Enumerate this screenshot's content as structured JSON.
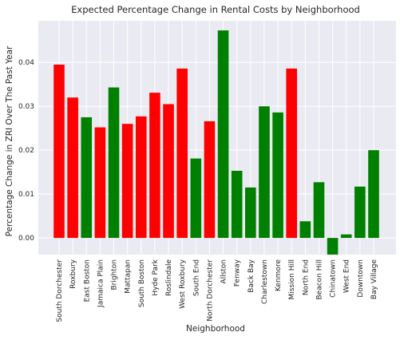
{
  "chart_data": {
    "type": "bar",
    "title": "Expected Percentage Change in Rental Costs by Neighborhood",
    "xlabel": "Neighborhood",
    "ylabel": "Percentage Change in ZRI Over The Past Year",
    "ylim": [
      -0.0038,
      0.0495
    ],
    "yticks": [
      0.0,
      0.01,
      0.02,
      0.03,
      0.04
    ],
    "ytick_labels": [
      "0.00",
      "0.01",
      "0.02",
      "0.03",
      "0.04"
    ],
    "grid": true,
    "categories": [
      "South Dorchester",
      "Roxbury",
      "East Boston",
      "Jamaica Plain",
      "Brighton",
      "Mattapan",
      "South Boston",
      "Hyde Park",
      "Roslindale",
      "West Roxbury",
      "South End",
      "North Dorchester",
      "Allston",
      "Fenway",
      "Back Bay",
      "Charlestown",
      "Kenmore",
      "Mission Hill",
      "North End",
      "Beacon Hill",
      "Chinatown",
      "West End",
      "Downtown",
      "Bay Village"
    ],
    "values": [
      0.0395,
      0.032,
      0.0275,
      0.0252,
      0.0343,
      0.026,
      0.0277,
      0.0331,
      0.0305,
      0.0386,
      0.0181,
      0.0266,
      0.0473,
      0.0153,
      0.0115,
      0.03,
      0.0286,
      0.0386,
      0.0038,
      0.0127,
      -0.0038,
      0.0008,
      0.0117,
      0.02
    ],
    "bar_colors": [
      "#ff0000",
      "#ff0000",
      "#008000",
      "#ff0000",
      "#008000",
      "#ff0000",
      "#ff0000",
      "#ff0000",
      "#ff0000",
      "#ff0000",
      "#008000",
      "#ff0000",
      "#008000",
      "#008000",
      "#008000",
      "#008000",
      "#008000",
      "#ff0000",
      "#008000",
      "#008000",
      "#008000",
      "#008000",
      "#008000",
      "#008000"
    ],
    "colors": {
      "plot_background": "#eaeaf2",
      "grid": "#ffffff"
    }
  }
}
